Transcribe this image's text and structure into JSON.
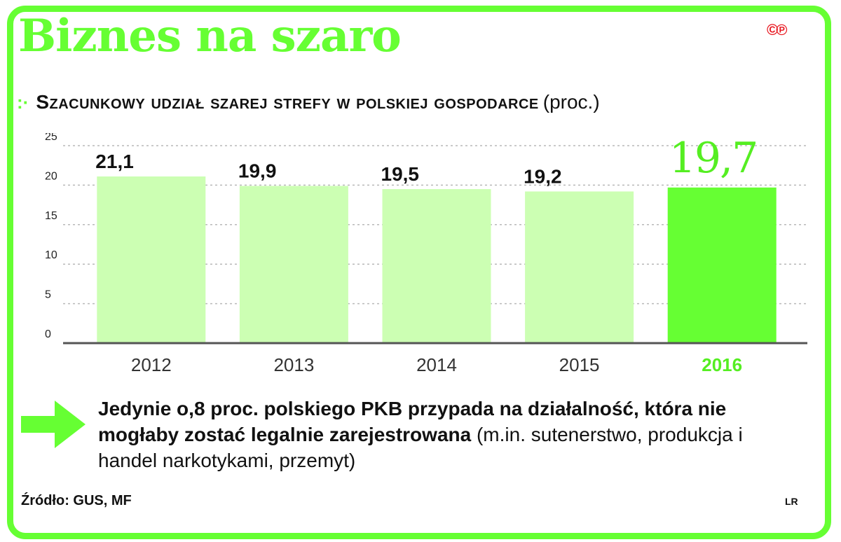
{
  "title": "Biznes na szaro",
  "logo_text": "©℗",
  "subtitle": {
    "bullet": ":·",
    "main": "Szacunkowy udział szarej strefy w polskiej gospodarce",
    "unit": "(proc.)"
  },
  "chart_data": {
    "type": "bar",
    "categories": [
      "2012",
      "2013",
      "2014",
      "2015",
      "2016"
    ],
    "values": [
      21.1,
      19.9,
      19.5,
      19.2,
      19.7
    ],
    "value_labels": [
      "21,1",
      "19,9",
      "19,5",
      "19,2",
      "19,7"
    ],
    "highlight_index": 4,
    "ylim": [
      0,
      25
    ],
    "yticks": [
      0,
      5,
      10,
      15,
      20,
      25
    ],
    "grid": true,
    "colors": {
      "bar": "#ccffb3",
      "highlight": "#66ff33",
      "highlight_text": "#55ee22"
    }
  },
  "note": {
    "bold": "Jedynie o,8 proc. polskiego PKB przypada na działalność, która nie mogłaby zostać legalnie zarejestrowana",
    "normal": " (m.in. sutenerstwo, produkcja i handel narkotykami, przemyt)"
  },
  "source": "Źródło: GUS, MF",
  "author": "LR"
}
